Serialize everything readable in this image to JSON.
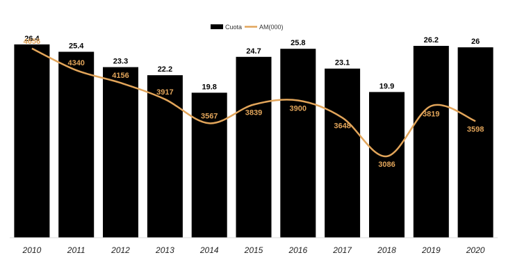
{
  "chart_data": {
    "type": "bar",
    "title": "",
    "xlabel": "",
    "ylabel": "",
    "categories": [
      "2010",
      "2011",
      "2012",
      "2013",
      "2014",
      "2015",
      "2016",
      "2017",
      "2018",
      "2019",
      "2020"
    ],
    "series": [
      {
        "name": "Cuota",
        "type": "bar",
        "color": "#000000",
        "values": [
          26.4,
          25.4,
          23.3,
          22.2,
          19.8,
          24.7,
          25.8,
          23.1,
          19.9,
          26.2,
          26
        ]
      },
      {
        "name": "AM(000)",
        "type": "line",
        "color": "#E2A55A",
        "values": [
          4656,
          4340,
          4156,
          3917,
          3567,
          3839,
          3900,
          3648,
          3086,
          3819,
          3598
        ]
      }
    ],
    "bar_axis": {
      "ylim": [
        0,
        30
      ]
    },
    "line_axis": {
      "ylim": [
        1900,
        5100
      ]
    },
    "legend": {
      "position": "top-center",
      "entries": [
        "Cuota",
        "AM(000)"
      ]
    },
    "grid": false
  }
}
